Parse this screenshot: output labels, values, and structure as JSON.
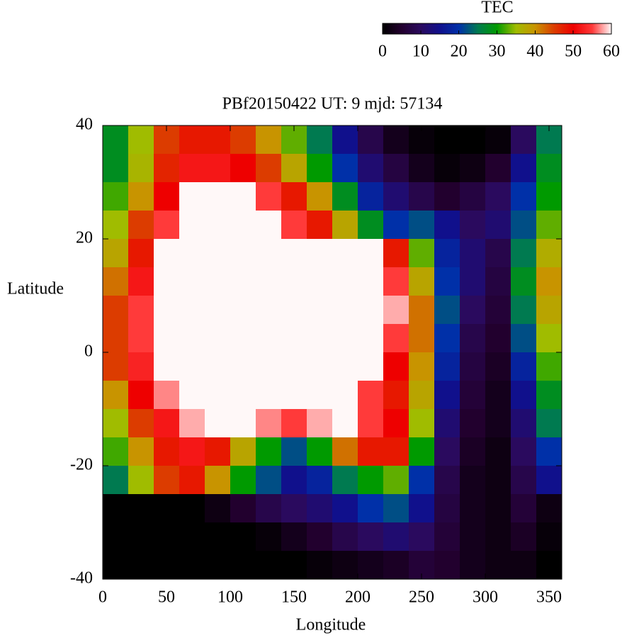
{
  "chart_data": {
    "type": "heatmap",
    "title": "PBf20150422  UT: 9  mjd: 57134",
    "xlabel": "Longitude",
    "ylabel": "Latitude",
    "colorbar_label": "TEC",
    "x": [
      10,
      30,
      50,
      70,
      90,
      110,
      130,
      150,
      170,
      190,
      210,
      230,
      250,
      270,
      290,
      310,
      330,
      350
    ],
    "y": [
      37.5,
      32.5,
      27.5,
      22.5,
      17.5,
      12.5,
      7.5,
      2.5,
      -2.5,
      -7.5,
      -12.5,
      -17.5,
      -22.5,
      -27.5,
      -32.5,
      -37.5
    ],
    "z": [
      [
        28,
        35,
        45,
        48,
        48,
        45,
        40,
        33,
        25,
        15,
        8,
        3,
        1,
        0,
        0,
        1,
        10,
        25
      ],
      [
        28,
        36,
        47,
        52,
        52,
        50,
        45,
        38,
        30,
        20,
        12,
        7,
        3,
        1,
        2,
        5,
        15,
        28
      ],
      [
        32,
        40,
        50,
        60,
        60,
        60,
        55,
        48,
        40,
        28,
        18,
        12,
        8,
        5,
        7,
        10,
        20,
        30
      ],
      [
        35,
        45,
        55,
        60,
        60,
        60,
        60,
        55,
        48,
        38,
        28,
        20,
        22,
        15,
        10,
        12,
        22,
        33
      ],
      [
        38,
        48,
        60,
        60,
        60,
        60,
        60,
        60,
        60,
        60,
        60,
        48,
        33,
        18,
        12,
        8,
        25,
        37
      ],
      [
        42,
        52,
        60,
        60,
        60,
        60,
        60,
        60,
        60,
        60,
        60,
        55,
        38,
        20,
        12,
        7,
        28,
        40
      ],
      [
        45,
        55,
        60,
        60,
        60,
        60,
        60,
        60,
        60,
        60,
        60,
        58,
        42,
        22,
        10,
        6,
        25,
        38
      ],
      [
        45,
        55,
        60,
        60,
        60,
        60,
        60,
        60,
        60,
        60,
        60,
        55,
        42,
        20,
        8,
        5,
        22,
        35
      ],
      [
        45,
        53,
        60,
        60,
        60,
        60,
        60,
        60,
        60,
        60,
        60,
        50,
        40,
        18,
        7,
        4,
        18,
        32
      ],
      [
        40,
        50,
        57,
        60,
        60,
        60,
        60,
        60,
        60,
        60,
        55,
        48,
        38,
        15,
        6,
        3,
        15,
        28
      ],
      [
        35,
        45,
        52,
        58,
        60,
        60,
        57,
        55,
        58,
        60,
        55,
        50,
        35,
        12,
        5,
        3,
        12,
        25
      ],
      [
        32,
        40,
        48,
        52,
        48,
        38,
        30,
        22,
        30,
        42,
        48,
        48,
        30,
        10,
        4,
        2,
        10,
        20
      ],
      [
        25,
        35,
        45,
        48,
        40,
        30,
        22,
        15,
        18,
        25,
        30,
        33,
        20,
        8,
        3,
        2,
        8,
        15
      ],
      [
        0,
        0,
        0,
        0,
        2,
        5,
        8,
        10,
        12,
        15,
        20,
        22,
        15,
        7,
        3,
        2,
        6,
        2
      ],
      [
        0,
        0,
        0,
        0,
        0,
        0,
        1,
        3,
        5,
        8,
        10,
        12,
        10,
        6,
        3,
        2,
        4,
        1
      ],
      [
        0,
        0,
        0,
        0,
        0,
        0,
        0,
        0,
        1,
        2,
        3,
        4,
        6,
        5,
        3,
        2,
        2,
        0
      ]
    ],
    "xlim": [
      0,
      360
    ],
    "ylim": [
      -40,
      40
    ],
    "xticks": [
      0,
      50,
      100,
      150,
      200,
      250,
      300,
      350
    ],
    "yticks": [
      -40,
      -20,
      0,
      20,
      40
    ],
    "zlim": [
      0,
      60
    ],
    "zticks": [
      0,
      10,
      20,
      30,
      40,
      50,
      60
    ],
    "colorscale": [
      "#000000",
      "#22002e",
      "#2a0a5e",
      "#10108c",
      "#0030a8",
      "#007a50",
      "#009a00",
      "#a0bc00",
      "#c89400",
      "#dc3c00",
      "#ee0000",
      "#ff3a3a",
      "#fff8f8"
    ]
  }
}
